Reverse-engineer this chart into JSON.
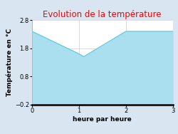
{
  "title": "Evolution de la température",
  "xlabel": "heure par heure",
  "ylabel": "Température en °C",
  "x": [
    0,
    1,
    1.1,
    2,
    3
  ],
  "y": [
    2.4,
    1.6,
    1.5,
    2.4,
    2.4
  ],
  "ylim": [
    -0.2,
    2.8
  ],
  "xlim": [
    0,
    3
  ],
  "yticks": [
    -0.2,
    0.8,
    1.8,
    2.8
  ],
  "xticks": [
    0,
    1,
    2,
    3
  ],
  "line_color": "#5bc8e0",
  "fill_color": "#aadff0",
  "title_color": "#ff0000",
  "bg_color": "#d9e6f2",
  "plot_bg_color": "#ffffff",
  "title_fontsize": 8.5,
  "label_fontsize": 6.5,
  "tick_fontsize": 6
}
